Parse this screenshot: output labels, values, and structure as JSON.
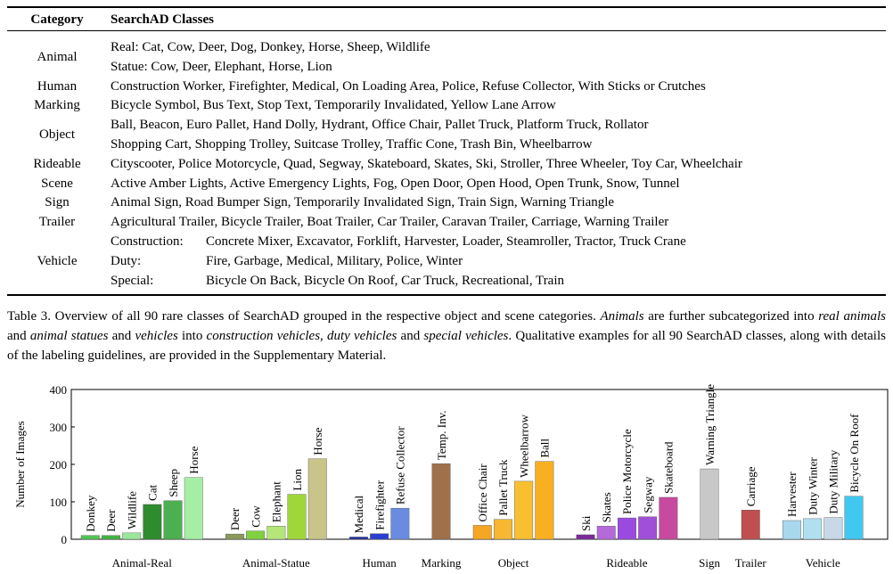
{
  "table": {
    "header": [
      "Category",
      "SearchAD Classes"
    ],
    "rows": [
      {
        "category": "Animal",
        "lines": [
          "Real: Cat, Cow, Deer, Dog, Donkey, Horse, Sheep, Wildlife",
          "Statue: Cow, Deer, Elephant, Horse, Lion"
        ]
      },
      {
        "category": "Human",
        "lines": [
          "Construction Worker, Firefighter, Medical, On Loading Area, Police, Refuse Collector, With Sticks or Crutches"
        ]
      },
      {
        "category": "Marking",
        "lines": [
          "Bicycle Symbol, Bus Text, Stop Text, Temporarily Invalidated, Yellow Lane Arrow"
        ]
      },
      {
        "category": "Object",
        "lines": [
          "Ball, Beacon, Euro Pallet, Hand Dolly, Hydrant, Office Chair, Pallet Truck, Platform Truck, Rollator",
          "Shopping Cart, Shopping Trolley, Suitcase Trolley, Traffic Cone, Trash Bin, Wheelbarrow"
        ]
      },
      {
        "category": "Rideable",
        "lines": [
          "Cityscooter, Police Motorcycle, Quad, Segway, Skateboard, Skates, Ski, Stroller, Three Wheeler, Toy Car, Wheelchair"
        ]
      },
      {
        "category": "Scene",
        "lines": [
          "Active Amber Lights, Active Emergency Lights, Fog, Open Door, Open Hood, Open Trunk, Snow, Tunnel"
        ]
      },
      {
        "category": "Sign",
        "lines": [
          "Animal Sign, Road Bumper Sign, Temporarily Invalidated Sign, Train Sign, Warning Triangle"
        ]
      },
      {
        "category": "Trailer",
        "lines": [
          "Agricultural Trailer, Bicycle Trailer, Boat Trailer, Car Trailer, Caravan Trailer, Carriage, Warning Trailer"
        ]
      },
      {
        "category": "Vehicle",
        "lines": [
          [
            "Construction:",
            "Concrete Mixer, Excavator, Forklift, Harvester, Loader, Steamroller, Tractor, Truck Crane"
          ],
          [
            "Duty:",
            "Fire, Garbage, Medical, Military, Police, Winter"
          ],
          [
            "Special:",
            "Bicycle On Back, Bicycle On Roof, Car Truck, Recreational, Train"
          ]
        ]
      }
    ]
  },
  "caption": {
    "parts": [
      {
        "text": "Table 3. Overview of all 90 rare classes of SearchAD grouped in the respective object and scene categories. ",
        "italic": false
      },
      {
        "text": "Animals",
        "italic": true
      },
      {
        "text": " are further subcategorized into ",
        "italic": false
      },
      {
        "text": "real animals",
        "italic": true
      },
      {
        "text": " and ",
        "italic": false
      },
      {
        "text": "animal statues",
        "italic": true
      },
      {
        "text": " and ",
        "italic": false
      },
      {
        "text": "vehicles",
        "italic": true
      },
      {
        "text": " into ",
        "italic": false
      },
      {
        "text": "construction vehicles",
        "italic": true
      },
      {
        "text": ", ",
        "italic": false
      },
      {
        "text": "duty vehicles",
        "italic": true
      },
      {
        "text": " and ",
        "italic": false
      },
      {
        "text": "special vehicles",
        "italic": true
      },
      {
        "text": ". Qualitative examples for all 90 SearchAD classes, along with details of the labeling guidelines, are provided in the Supplementary Material.",
        "italic": false
      }
    ]
  },
  "chart_data": {
    "type": "bar",
    "ylabel": "Number of Images",
    "ylim": [
      0,
      400
    ],
    "yticks": [
      0,
      100,
      200,
      300,
      400
    ],
    "groups": [
      {
        "name": "Animal-Real",
        "categories": [
          "Donkey",
          "Deer",
          "Wildlife",
          "Cat",
          "Sheep",
          "Horse"
        ],
        "values": [
          10,
          10,
          17,
          93,
          103,
          165
        ],
        "colors": [
          "#52c552",
          "#43b343",
          "#9be69b",
          "#2e8b2e",
          "#4caf50",
          "#a6eea6"
        ]
      },
      {
        "name": "Animal-Statue",
        "categories": [
          "Deer",
          "Cow",
          "Elephant",
          "Lion",
          "Horse"
        ],
        "values": [
          14,
          22,
          35,
          120,
          215
        ],
        "colors": [
          "#8a9a5b",
          "#7fd13f",
          "#b5e67a",
          "#9fd63a",
          "#c8c48a"
        ]
      },
      {
        "name": "Human",
        "categories": [
          "Medical",
          "Firefighter",
          "Refuse Collector"
        ],
        "values": [
          6,
          15,
          83
        ],
        "colors": [
          "#1f2fa0",
          "#2a3fd0",
          "#6a8be0"
        ]
      },
      {
        "name": "Marking",
        "categories": [
          "Temp. Inv."
        ],
        "values": [
          202
        ],
        "colors": [
          "#a0704a"
        ]
      },
      {
        "name": "Object",
        "categories": [
          "Office Chair",
          "Pallet Truck",
          "Wheelbarrow",
          "Ball"
        ],
        "values": [
          37,
          53,
          155,
          208
        ],
        "colors": [
          "#f5a623",
          "#f7b733",
          "#f8c030",
          "#f9b020"
        ]
      },
      {
        "name": "Rideable",
        "categories": [
          "Ski",
          "Skates",
          "Police Motorcycle",
          "Segway",
          "Skateboard"
        ],
        "values": [
          12,
          35,
          57,
          60,
          112
        ],
        "colors": [
          "#7b2a9a",
          "#b46ad8",
          "#9a4ae0",
          "#a050d8",
          "#c84aa0"
        ]
      },
      {
        "name": "Sign",
        "categories": [
          "Warning Triangle"
        ],
        "values": [
          188
        ],
        "colors": [
          "#c8c8c8"
        ]
      },
      {
        "name": "Trailer",
        "categories": [
          "Carriage"
        ],
        "values": [
          78
        ],
        "colors": [
          "#c05050"
        ]
      },
      {
        "name": "Vehicle",
        "categories": [
          "Harvester",
          "Duty Winter",
          "Duty Military",
          "Bicycle On Roof"
        ],
        "values": [
          50,
          55,
          58,
          115
        ],
        "colors": [
          "#a8d8ee",
          "#b0e0f0",
          "#c8d8e8",
          "#40c8f0"
        ]
      }
    ]
  }
}
